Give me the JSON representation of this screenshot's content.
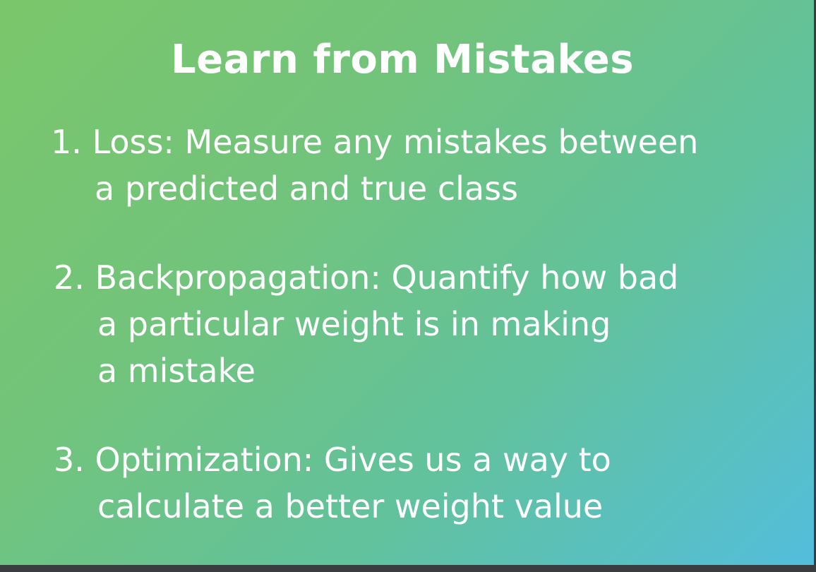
{
  "slide": {
    "title": "Learn from Mistakes",
    "items": [
      {
        "number": "1.",
        "lines": [
          "Loss: Measure any mistakes between",
          "a predicted and true class"
        ]
      },
      {
        "number": "2.",
        "lines": [
          "Backpropagation: Quantify how bad",
          "a particular weight is in making",
          "a mistake"
        ]
      },
      {
        "number": "3.",
        "lines": [
          "Optimization: Gives us a way to",
          "calculate a better weight value"
        ]
      }
    ]
  },
  "colors": {
    "gradient_start": "#7ac66a",
    "gradient_end": "#53bedc",
    "text": "#ffffff",
    "frame": "#3a3d40"
  }
}
